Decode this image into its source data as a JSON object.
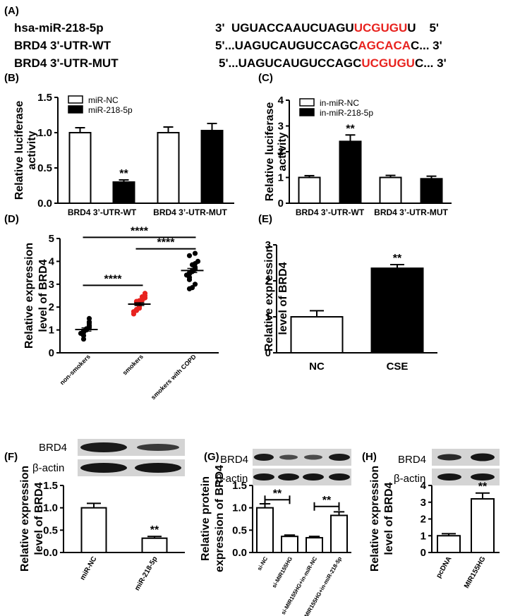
{
  "panel_a": {
    "label": "(A)",
    "rows": [
      {
        "name": "hsa-miR-218-5p",
        "prefix": "3'  UGUACCAAUCUAGU",
        "highlight": "UCGUGU",
        "suffix": "U    5'"
      },
      {
        "name": "BRD4 3'-UTR-WT",
        "prefix": "5'...UAGUCAUGUCCAGC",
        "highlight": "AGCACA",
        "suffix": "C... 3'"
      },
      {
        "name": "BRD4 3'-UTR-MUT",
        "prefix": "5'...UAGUCAUGUCCAGC",
        "highlight": "UCGUGU",
        "suffix": "C... 3'"
      }
    ],
    "highlight_color": "#e8231f"
  },
  "blots": {
    "F": {
      "label": "(F)",
      "rows": [
        "BRD4",
        "β-actin"
      ]
    },
    "G": {
      "label": "(G)",
      "rows": [
        "BRD4",
        "β-actin"
      ]
    },
    "H": {
      "label": "(H)",
      "rows": [
        "BRD4",
        "β-actin"
      ]
    }
  },
  "chart_data": [
    {
      "id": "B",
      "label": "(B)",
      "type": "bar",
      "ylabel": [
        "Relative  luciferase",
        "activity"
      ],
      "ylim": [
        0,
        1.5
      ],
      "yticks": [
        "0.0",
        "0.5",
        "1.0",
        "1.5"
      ],
      "groups": [
        "BRD4 3’-UTR-WT",
        "BRD4 3’-UTR-MUT"
      ],
      "series": [
        {
          "name": "miR-NC",
          "values": [
            1.0,
            1.0
          ],
          "err": [
            0.07,
            0.08
          ]
        },
        {
          "name": "miR-218-5p",
          "values": [
            0.3,
            1.03
          ],
          "err": [
            0.03,
            0.1
          ]
        }
      ],
      "annotations": [
        {
          "group": 0,
          "series": 1,
          "text": "**"
        }
      ]
    },
    {
      "id": "C",
      "label": "(C)",
      "type": "bar",
      "ylabel": [
        "Relative  luciferase",
        "activity"
      ],
      "ylim": [
        0,
        4
      ],
      "yticks": [
        "0",
        "1",
        "2",
        "3",
        "4"
      ],
      "groups": [
        "BRD4 3’-UTR-WT",
        "BRD4 3’-UTR-MUT"
      ],
      "series": [
        {
          "name": "in-miR-NC",
          "values": [
            1.0,
            1.0
          ],
          "err": [
            0.07,
            0.08
          ]
        },
        {
          "name": "in-miR-218-5p",
          "values": [
            2.4,
            0.95
          ],
          "err": [
            0.25,
            0.1
          ]
        }
      ],
      "annotations": [
        {
          "group": 0,
          "series": 1,
          "text": "**"
        }
      ]
    },
    {
      "id": "D",
      "label": "(D)",
      "type": "scatter",
      "ylabel": [
        "Relative expression",
        "level of BRD4"
      ],
      "ylim": [
        0,
        5
      ],
      "yticks": [
        "0",
        "1",
        "2",
        "3",
        "4",
        "5"
      ],
      "categories": [
        "non-smokers",
        "smokers",
        "smokers with COPD"
      ],
      "colors": [
        "#000000",
        "#e8231f",
        "#000000"
      ],
      "means": [
        1.02,
        2.13,
        3.6
      ],
      "sems": [
        0.07,
        0.06,
        0.09
      ],
      "points": [
        [
          1.5,
          1.35,
          1.3,
          1.2,
          1.15,
          1.1,
          1.05,
          1.0,
          0.95,
          0.9,
          0.85,
          0.75,
          0.6
        ],
        [
          2.6,
          2.45,
          2.4,
          2.35,
          2.3,
          2.25,
          2.2,
          2.15,
          2.1,
          2.05,
          2.0,
          1.95,
          1.9,
          1.85,
          1.8,
          1.7,
          2.28,
          2.5
        ],
        [
          4.35,
          4.25,
          4.0,
          3.9,
          3.85,
          3.75,
          3.7,
          3.6,
          3.55,
          3.5,
          3.4,
          3.3,
          3.2,
          3.0,
          2.85,
          2.8,
          3.65,
          3.45
        ]
      ],
      "brackets": [
        {
          "from": 0,
          "to": 1,
          "y": 2.95,
          "text": "****"
        },
        {
          "from": 1,
          "to": 2,
          "y": 4.55,
          "text": "****"
        },
        {
          "from": 0,
          "to": 2,
          "y": 5.05,
          "text": "****"
        }
      ]
    },
    {
      "id": "E",
      "label": "(E)",
      "type": "bar",
      "ylabel": [
        "Relative expression",
        "level of BRD4"
      ],
      "ylim": [
        0,
        3
      ],
      "yticks": [
        "0",
        "1",
        "2",
        "3"
      ],
      "categories": [
        "NC",
        "CSE"
      ],
      "values": [
        1.0,
        2.35
      ],
      "err": [
        0.17,
        0.1
      ],
      "fills": [
        "#ffffff",
        "#000000"
      ],
      "annotations": [
        {
          "index": 1,
          "text": "**"
        }
      ]
    },
    {
      "id": "F",
      "label": "(F)",
      "type": "bar",
      "ylabel": [
        "Relative expression",
        "level of BRD4"
      ],
      "ylim": [
        0,
        1.5
      ],
      "yticks": [
        "0.0",
        "0.5",
        "1.0",
        "1.5"
      ],
      "categories": [
        "miR-NC",
        "miR-218-5p"
      ],
      "values": [
        1.0,
        0.32
      ],
      "err": [
        0.1,
        0.04
      ],
      "fills": [
        "#ffffff",
        "#ffffff"
      ],
      "annotations": [
        {
          "index": 1,
          "text": "**"
        }
      ]
    },
    {
      "id": "G",
      "label": "(G)",
      "type": "bar",
      "ylabel": [
        "Relative protein",
        "expression of BRD4"
      ],
      "ylim": [
        0,
        1.5
      ],
      "yticks": [
        "0.0",
        "0.5",
        "1.0",
        "1.5"
      ],
      "categories": [
        "si-NC",
        "si-MIR155HG",
        "si-MIR155HG+in-miR-NC",
        "si-MIR155HG+in-miR-218-5p"
      ],
      "values": [
        1.0,
        0.36,
        0.33,
        0.83
      ],
      "err": [
        0.09,
        0.03,
        0.03,
        0.08
      ],
      "fills": [
        "#ffffff",
        "#ffffff",
        "#ffffff",
        "#ffffff"
      ],
      "brackets": [
        {
          "from": 0,
          "to": 1,
          "y": 1.18,
          "text": "**"
        },
        {
          "from": 2,
          "to": 3,
          "y": 1.03,
          "text": "**"
        }
      ]
    },
    {
      "id": "H",
      "label": "(H)",
      "type": "bar",
      "ylabel": [
        "Relative expression",
        "level of BRD4"
      ],
      "ylim": [
        0,
        4
      ],
      "yticks": [
        "0",
        "1",
        "2",
        "3",
        "4"
      ],
      "categories": [
        "pcDNA",
        "MIR155HG"
      ],
      "values": [
        1.0,
        3.2
      ],
      "err": [
        0.12,
        0.35
      ],
      "fills": [
        "#ffffff",
        "#ffffff"
      ],
      "annotations": [
        {
          "index": 1,
          "text": "**"
        }
      ]
    }
  ]
}
